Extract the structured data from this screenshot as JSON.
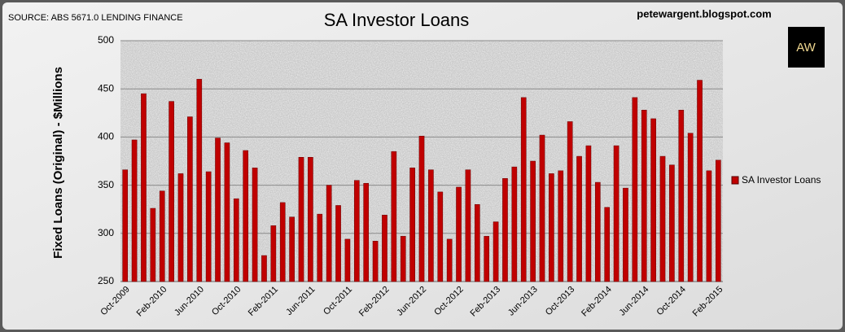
{
  "source": "SOURCE: ABS 5671.0 LENDING FINANCE",
  "website": "petewargent.blogspot.com",
  "logo": "AW",
  "chart_data": {
    "type": "bar",
    "title": "SA Investor Loans",
    "y_label": "Fixed Loans (Original) - $Millions",
    "categories": [
      "Oct-2009",
      null,
      null,
      null,
      "Feb-2010",
      null,
      null,
      null,
      "Jun-2010",
      null,
      null,
      null,
      "Oct-2010",
      null,
      null,
      null,
      "Feb-2011",
      null,
      null,
      null,
      "Jun-2011",
      null,
      null,
      null,
      "Oct-2011",
      null,
      null,
      null,
      "Feb-2012",
      null,
      null,
      null,
      "Jun-2012",
      null,
      null,
      null,
      "Oct-2012",
      null,
      null,
      null,
      "Feb-2013",
      null,
      null,
      null,
      "Jun-2013",
      null,
      null,
      null,
      "Oct-2013",
      null,
      null,
      null,
      "Feb-2014",
      null,
      null,
      null,
      "Jun-2014",
      null,
      null,
      null,
      "Oct-2014",
      null,
      null,
      null,
      "Feb-2015"
    ],
    "series": [
      {
        "name": "SA Investor Loans",
        "color": "#c00000",
        "values": [
          366,
          397,
          445,
          326,
          344,
          437,
          362,
          421,
          460,
          364,
          399,
          394,
          336,
          386,
          368,
          277,
          308,
          332,
          317,
          379,
          379,
          320,
          350,
          329,
          294,
          355,
          352,
          292,
          319,
          385,
          297,
          368,
          401,
          366,
          343,
          294,
          348,
          366,
          330,
          297,
          312,
          357,
          369,
          441,
          375,
          402,
          362,
          365,
          416,
          380,
          391,
          353,
          327,
          391,
          347,
          441,
          428,
          419,
          380,
          371,
          428,
          404,
          459,
          365,
          376
        ]
      }
    ],
    "ylim": [
      250,
      500
    ],
    "yticks": [
      250,
      300,
      350,
      400,
      450,
      500
    ],
    "grid": true,
    "legend": "right"
  }
}
